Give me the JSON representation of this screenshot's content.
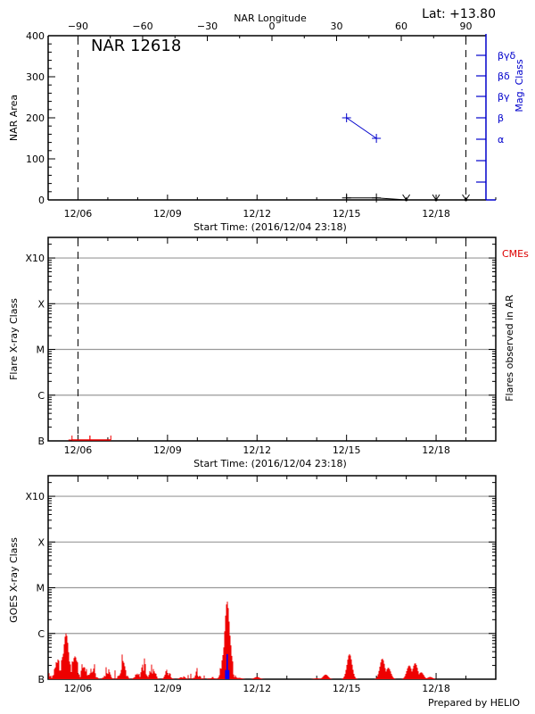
{
  "header": {
    "region_title": "NAR 12618",
    "latitude_label": "Lat: +13.80",
    "top_axis_label": "NAR Longitude",
    "footer": "Prepared by HELIO"
  },
  "colors": {
    "axis": "#000000",
    "grid": "#999999",
    "mag_class": "#0000cc",
    "flare": "#ee0000",
    "goes_peak_overlay": "#0000ff"
  },
  "chart_data": [
    {
      "id": "nar-area",
      "type": "line",
      "title": "NAR 12618",
      "subtitle": "Lat: +13.80",
      "xlabel": "Start Time: (2016/12/04 23:18)",
      "ylabel": "NAR Area",
      "y2label": "Mag. Class",
      "top_xlabel": "NAR Longitude",
      "top_xticks": [
        "-90",
        "-60",
        "-30",
        "0",
        "30",
        "60",
        "90"
      ],
      "top_xtick_values": [
        -90,
        -60,
        -30,
        0,
        30,
        60,
        90
      ],
      "xticks": [
        "12/06",
        "12/09",
        "12/12",
        "12/15",
        "12/18"
      ],
      "x_range_days": [
        0,
        15
      ],
      "ylim": [
        0,
        400
      ],
      "yticks": [
        0,
        100,
        200,
        300,
        400
      ],
      "y2ticks": [
        "",
        "",
        "α",
        "β",
        "βγ",
        "βδ",
        "βγδ"
      ],
      "limb_markers_day": [
        1.0,
        14.0
      ],
      "series": [
        {
          "name": "NAR Area",
          "color": "#000000",
          "x_day": [
            10.0,
            11.0,
            12.0,
            13.0,
            14.0
          ],
          "values": [
            5,
            5,
            0,
            0,
            0
          ],
          "markers": [
            "plus",
            "plus",
            "down-arrow",
            "down-arrow",
            "down-arrow"
          ]
        },
        {
          "name": "Mag. Class",
          "color": "#0000cc",
          "x_day": [
            10.0,
            11.0
          ],
          "values": [
            "β",
            "α"
          ],
          "values_numeric_area_scale": [
            200,
            150
          ]
        }
      ],
      "grid": false
    },
    {
      "id": "flares-in-ar",
      "type": "scatter",
      "xlabel": "Start Time: (2016/12/04 23:18)",
      "ylabel": "Flare X-ray Class",
      "y2label": "Flares observed in AR",
      "legend": [
        "CMEs"
      ],
      "xticks": [
        "12/06",
        "12/09",
        "12/12",
        "12/15",
        "12/18"
      ],
      "x_range_days": [
        0,
        15
      ],
      "yticks": [
        "B",
        "C",
        "M",
        "X",
        "X10"
      ],
      "limb_markers_day": [
        1.0,
        14.0
      ],
      "series": [
        {
          "name": "Flares",
          "color": "#ee0000",
          "x_start_day": [
            0.8,
            1.4
          ],
          "x_end_day": [
            1.4,
            2.1
          ],
          "class": [
            "B",
            "B"
          ]
        }
      ],
      "grid": true
    },
    {
      "id": "goes-xray",
      "type": "line",
      "xlabel": "",
      "ylabel": "GOES X-ray Class",
      "xticks": [
        "12/06",
        "12/09",
        "12/12",
        "12/15",
        "12/18"
      ],
      "x_range_days": [
        0,
        15
      ],
      "yticks": [
        "B",
        "C",
        "M",
        "X",
        "X10"
      ],
      "series": [
        {
          "name": "GOES flux",
          "color": "#ee0000",
          "x_day": [
            0.0,
            0.3,
            0.5,
            0.6,
            0.7,
            0.9,
            1.2,
            1.5,
            2.0,
            2.5,
            3.0,
            3.2,
            3.5,
            4.0,
            4.5,
            5.0,
            5.5,
            5.8,
            5.9,
            6.0,
            6.05,
            6.1,
            6.2,
            6.4,
            7.0,
            9.0,
            9.3,
            10.1,
            11.2,
            11.4,
            12.1,
            12.3,
            12.5,
            12.8
          ],
          "values_decade": [
            0.15,
            0.35,
            0.5,
            1.0,
            0.3,
            0.5,
            0.3,
            0.2,
            0.25,
            0.4,
            0.1,
            0.3,
            0.25,
            0.15,
            0.05,
            0.1,
            0.05,
            0.1,
            0.6,
            1.7,
            1.1,
            0.3,
            0.1,
            0.03,
            0.05,
            0.02,
            0.1,
            0.55,
            0.45,
            0.25,
            0.3,
            0.35,
            0.15,
            0.05
          ]
        },
        {
          "name": "Peak overlay",
          "color": "#0000ff",
          "x_day": [
            5.95,
            6.0,
            6.05
          ],
          "values_decade": [
            0.2,
            0.55,
            0.2
          ]
        }
      ],
      "grid": true
    }
  ]
}
